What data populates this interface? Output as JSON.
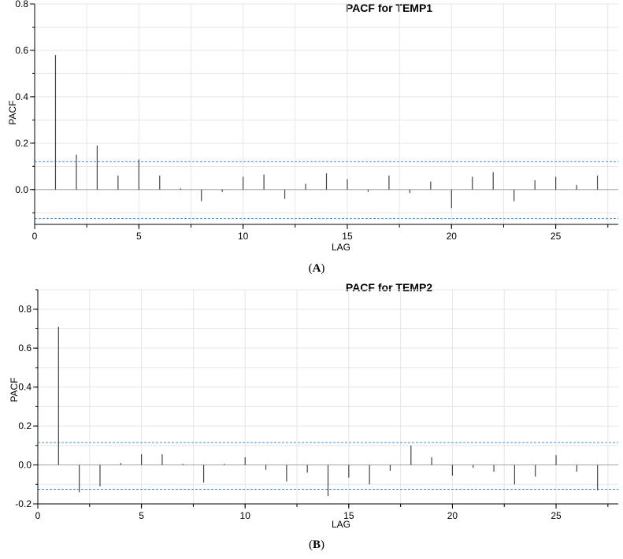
{
  "chart_data": [
    {
      "type": "bar",
      "title": "PACF for TEMP1",
      "xlabel": "LAG",
      "ylabel": "PACF",
      "caption_open": "(",
      "caption_letter": "A",
      "caption_close": ")",
      "xlim": [
        0,
        28
      ],
      "ylim": [
        -0.15,
        0.8
      ],
      "xticks": [
        0,
        5,
        10,
        15,
        20,
        25
      ],
      "yticks": [
        0.0,
        0.2,
        0.4,
        0.6,
        0.8
      ],
      "ytick_labels": [
        "0.0",
        "0.2",
        "0.4",
        "0.6",
        "0.8"
      ],
      "grid": true,
      "confidence_band": [
        0.12,
        -0.125
      ],
      "colors": {
        "bar": "#444444",
        "band": "#4a90d9",
        "grid": "#e6e6e6"
      },
      "x": [
        1,
        2,
        3,
        4,
        5,
        6,
        7,
        8,
        9,
        10,
        11,
        12,
        13,
        14,
        15,
        16,
        17,
        18,
        19,
        20,
        21,
        22,
        23,
        24,
        25,
        26,
        27
      ],
      "values": [
        0.58,
        0.15,
        0.19,
        0.06,
        0.13,
        0.06,
        0.005,
        -0.05,
        -0.01,
        0.055,
        0.065,
        -0.04,
        0.025,
        0.07,
        0.045,
        -0.01,
        0.06,
        -0.015,
        0.035,
        -0.08,
        0.055,
        0.075,
        -0.05,
        0.04,
        0.055,
        0.02,
        0.06
      ]
    },
    {
      "type": "bar",
      "title": "PACF for TEMP2",
      "xlabel": "LAG",
      "ylabel": "PACF",
      "caption_open": "(",
      "caption_letter": "B",
      "caption_close": ")",
      "xlim": [
        0,
        28
      ],
      "ylim": [
        -0.2,
        0.9
      ],
      "xticks": [
        0,
        5,
        10,
        15,
        20,
        25
      ],
      "yticks": [
        -0.2,
        0.0,
        0.2,
        0.4,
        0.6,
        0.8
      ],
      "ytick_labels": [
        "-0.2",
        "0.0",
        "0.2",
        "0.4",
        "0.6",
        "0.8"
      ],
      "grid": true,
      "confidence_band": [
        0.115,
        -0.125
      ],
      "colors": {
        "bar": "#444444",
        "band": "#4a90d9",
        "grid": "#e6e6e6"
      },
      "x": [
        1,
        2,
        3,
        4,
        5,
        6,
        7,
        8,
        9,
        10,
        11,
        12,
        13,
        14,
        15,
        16,
        17,
        18,
        19,
        20,
        21,
        22,
        23,
        24,
        25,
        26,
        27
      ],
      "values": [
        0.71,
        -0.14,
        -0.11,
        0.01,
        0.055,
        0.055,
        0.005,
        -0.09,
        0.005,
        0.04,
        -0.025,
        -0.085,
        -0.04,
        -0.16,
        -0.065,
        -0.1,
        -0.03,
        0.1,
        0.04,
        -0.055,
        -0.015,
        -0.035,
        -0.1,
        -0.06,
        0.05,
        -0.035,
        -0.13
      ]
    }
  ]
}
